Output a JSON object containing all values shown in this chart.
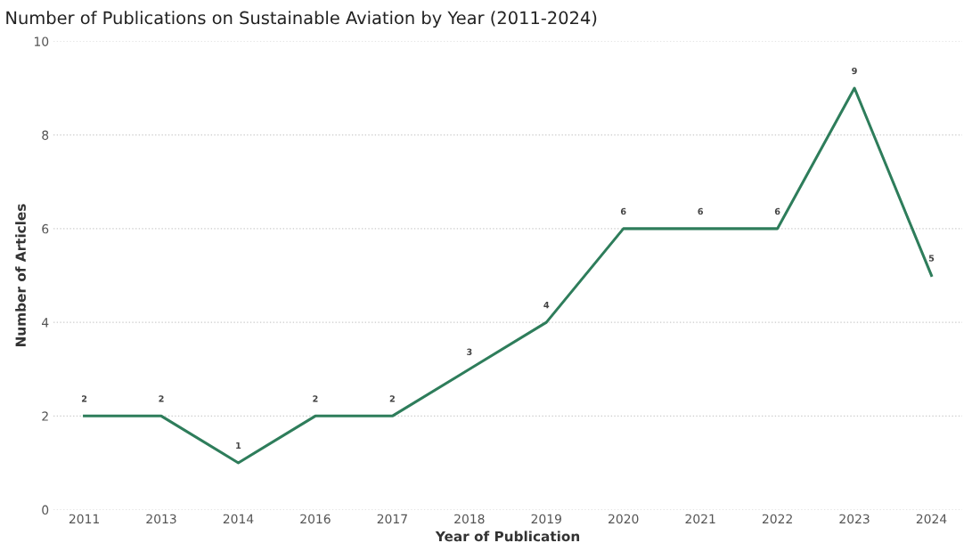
{
  "chart_data": {
    "type": "line",
    "title": "Number of Publications on Sustainable Aviation by Year (2011-2024)",
    "xlabel": "Year of Publication",
    "ylabel": "Number of Articles",
    "categories": [
      "2011",
      "2013",
      "2014",
      "2016",
      "2017",
      "2018",
      "2019",
      "2020",
      "2021",
      "2022",
      "2023",
      "2024"
    ],
    "series": [
      {
        "color": "#2e7d5b",
        "values": [
          2,
          2,
          1,
          2,
          2,
          3,
          4,
          6,
          6,
          6,
          9,
          5
        ]
      }
    ],
    "ylim": [
      0,
      10
    ],
    "yticks": [
      0,
      2,
      4,
      6,
      8,
      10
    ],
    "grid": "y",
    "data_labels": true,
    "marker": "none",
    "line_style": "solid"
  }
}
